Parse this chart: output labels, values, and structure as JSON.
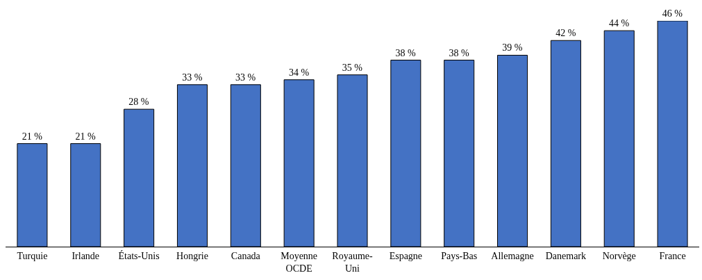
{
  "chart_data": {
    "type": "bar",
    "categories": [
      "Turquie",
      "Irlande",
      "États-Unis",
      "Hongrie",
      "Canada",
      "Moyenne OCDE",
      "Royaume-Uni",
      "Espagne",
      "Pays-Bas",
      "Allemagne",
      "Danemark",
      "Norvège",
      "France"
    ],
    "values": [
      21,
      21,
      28,
      33,
      33,
      34,
      35,
      38,
      38,
      39,
      42,
      44,
      46
    ],
    "value_labels": [
      "21 %",
      "21 %",
      "28 %",
      "33 %",
      "33 %",
      "34 %",
      "35 %",
      "38 %",
      "38 %",
      "39 %",
      "42 %",
      "44 %",
      "46 %"
    ],
    "color": "#4472c4",
    "ylim": [
      0,
      46
    ],
    "tick_labels": "x"
  }
}
